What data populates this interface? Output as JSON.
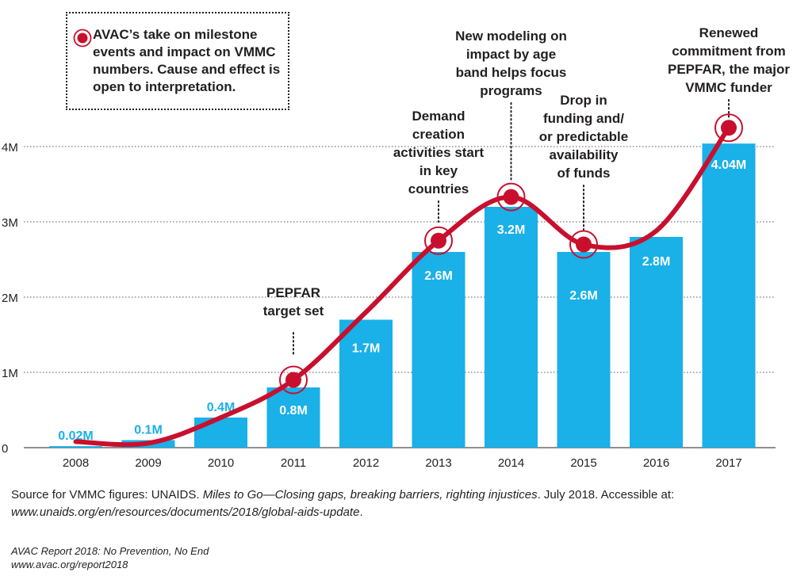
{
  "chart_data": {
    "type": "bar",
    "categories": [
      "2008",
      "2009",
      "2010",
      "2011",
      "2012",
      "2013",
      "2014",
      "2015",
      "2016",
      "2017"
    ],
    "values": [
      0.02,
      0.1,
      0.4,
      0.8,
      1.7,
      2.6,
      3.2,
      2.6,
      2.8,
      4.04
    ],
    "data_labels": [
      "0.02M",
      "0.1M",
      "0.4M",
      "0.8M",
      "1.7M",
      "2.6M",
      "3.2M",
      "2.6M",
      "2.8M",
      "4.04M"
    ],
    "yticks": [
      0,
      1,
      2,
      3,
      4
    ],
    "ytick_labels": [
      "0",
      "1M",
      "2M",
      "3M",
      "4M"
    ],
    "ylim": [
      0,
      4.35
    ],
    "grid": true,
    "bar_color": "#1ab0e8",
    "trend_color": "#c8102e",
    "milestones": [
      {
        "year": "2011",
        "value": 0.9,
        "label": [
          "PEPFAR",
          "target set"
        ]
      },
      {
        "year": "2013",
        "value": 2.75,
        "label": [
          "Demand",
          "creation",
          "activities start",
          "in key",
          "countries"
        ]
      },
      {
        "year": "2014",
        "value": 3.33,
        "label": [
          "New modeling on",
          "impact by age",
          "band helps focus",
          "programs"
        ]
      },
      {
        "year": "2015",
        "value": 2.7,
        "label": [
          "Drop in",
          "funding and/",
          "or predictable",
          "availability",
          "of funds"
        ]
      },
      {
        "year": "2017",
        "value": 4.25,
        "label": [
          "Renewed",
          "commitment from",
          "PEPFAR, the major",
          "VMMC funder"
        ]
      }
    ],
    "trend_points": [
      {
        "year": "2008",
        "value": 0.08
      },
      {
        "year": "2009",
        "value": 0.06
      },
      {
        "year": "2010",
        "value": 0.4
      },
      {
        "year": "2011",
        "value": 0.9
      },
      {
        "year": "2012",
        "value": 1.8
      },
      {
        "year": "2013",
        "value": 2.75
      },
      {
        "year": "2014",
        "value": 3.33
      },
      {
        "year": "2015",
        "value": 2.7
      },
      {
        "year": "2016",
        "value": 2.88
      },
      {
        "year": "2017",
        "value": 4.25
      }
    ]
  },
  "legend": {
    "text": "AVAC’s take on milestone events and impact on VMMC numbers. Cause and effect is open to interpretation."
  },
  "source": {
    "prefix": "Source for VMMC figures: UNAIDS. ",
    "title": "Miles to Go—Closing gaps, breaking barriers, righting injustices",
    "middle": ". July 2018. Accessible at: ",
    "url": "www.unaids.org/en/resources/documents/2018/global-aids-update",
    "suffix": "."
  },
  "report": {
    "line1": "AVAC Report 2018: No Prevention, No End",
    "line2": "www.avac.org/report2018"
  }
}
